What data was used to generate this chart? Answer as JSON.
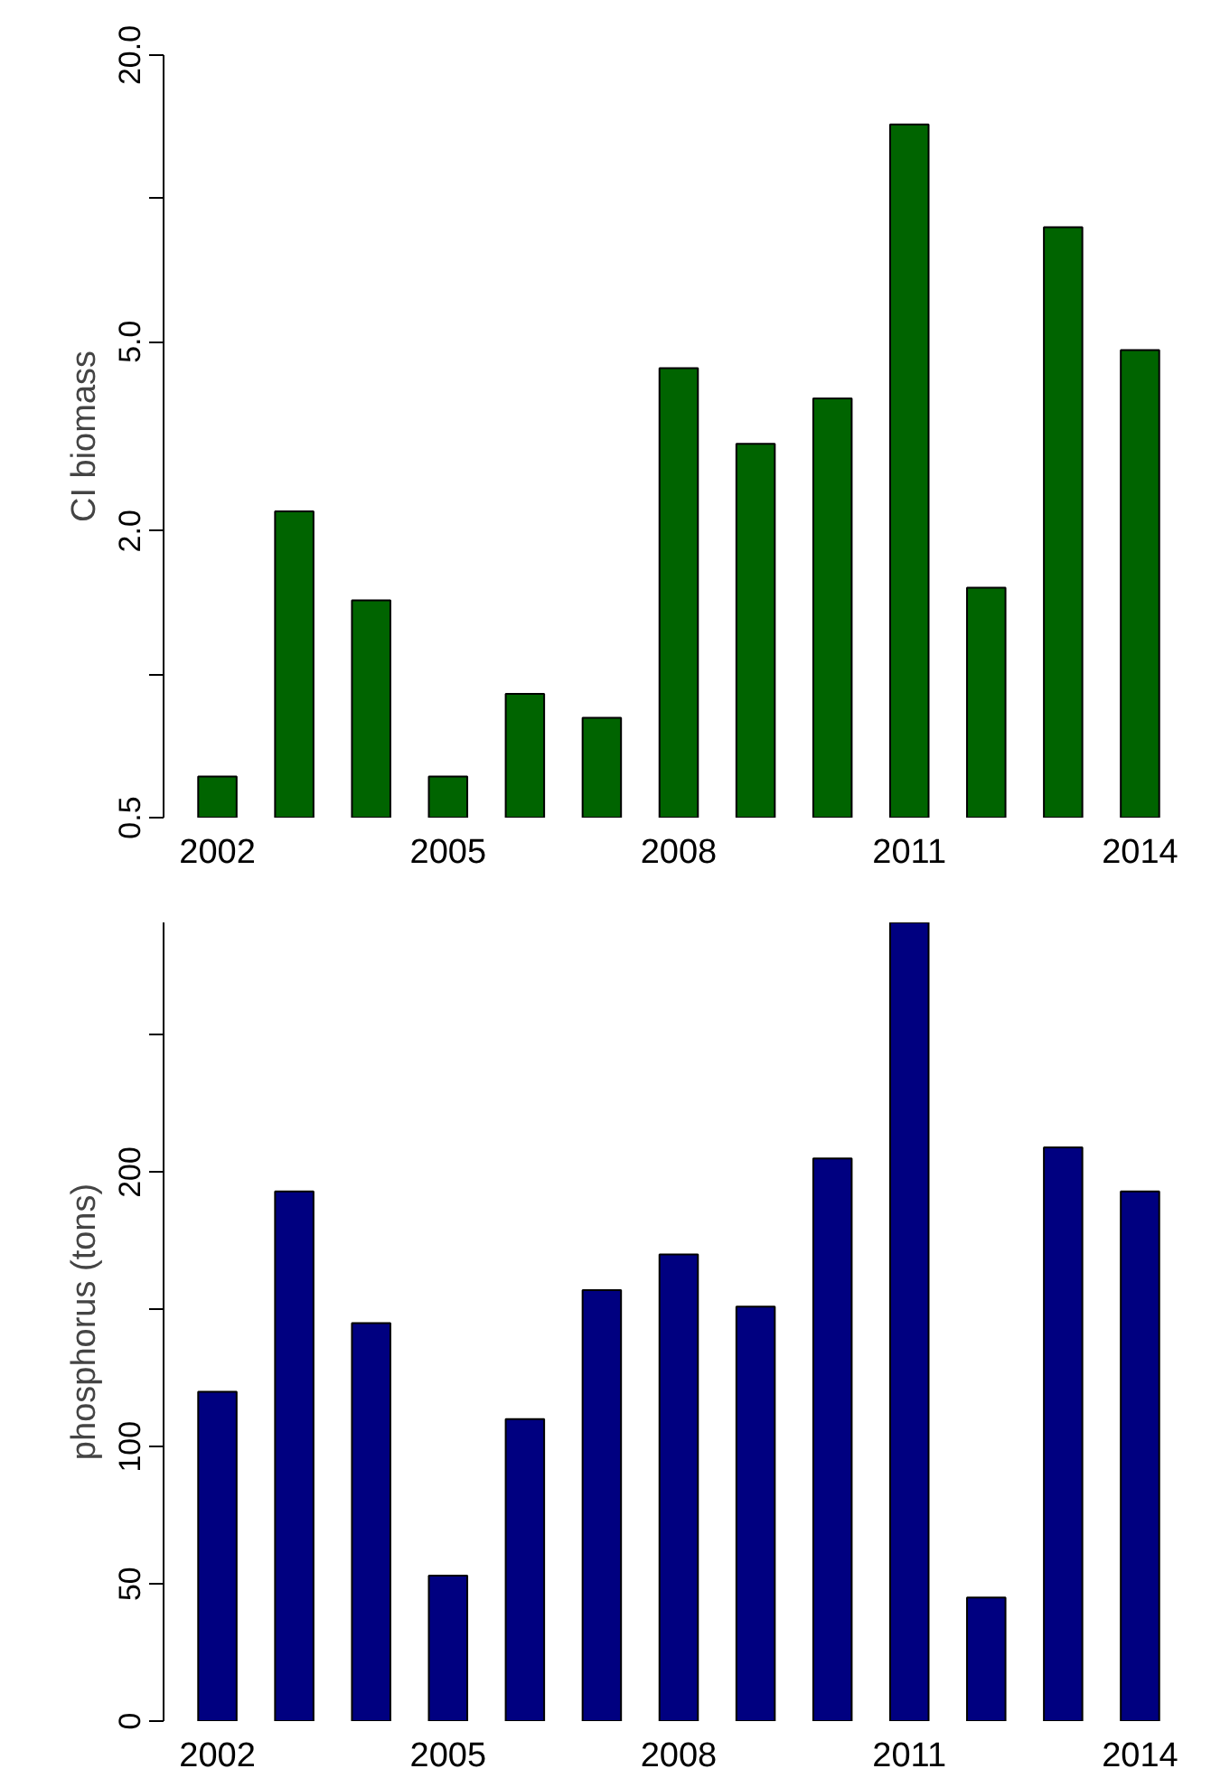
{
  "chart_data": [
    {
      "type": "bar",
      "ylabel": "CI biomass",
      "categories": [
        "2002",
        null,
        null,
        "2005",
        null,
        null,
        "2008",
        null,
        null,
        "2011",
        null,
        null,
        "2014"
      ],
      "values": [
        0.61,
        2.2,
        1.43,
        0.61,
        0.91,
        0.81,
        4.4,
        3.05,
        3.8,
        14.3,
        1.52,
        8.7,
        4.8
      ],
      "color": "#006400",
      "log": "y",
      "ylim": [
        0.5,
        20
      ],
      "yticks": [
        {
          "value": 0.5,
          "label": "0.5"
        },
        {
          "value": 1,
          "label": null
        },
        {
          "value": 2,
          "label": "2.0"
        },
        {
          "value": 5,
          "label": "5.0"
        },
        {
          "value": 10,
          "label": null
        },
        {
          "value": 20,
          "label": "20.0"
        }
      ],
      "grid": false
    },
    {
      "type": "bar",
      "ylabel": "phosphorus (tons)",
      "categories": [
        "2002",
        null,
        null,
        "2005",
        null,
        null,
        "2008",
        null,
        null,
        "2011",
        null,
        null,
        "2014"
      ],
      "values": [
        120,
        193,
        145,
        53,
        110,
        157,
        170,
        151,
        205,
        291,
        45,
        209,
        193
      ],
      "color": "#000080",
      "ylim": [
        0,
        291
      ],
      "yticks": [
        0,
        50,
        100,
        {
          "value": 150,
          "label": null
        },
        200,
        {
          "value": 250,
          "label": null
        }
      ],
      "grid": false
    }
  ]
}
